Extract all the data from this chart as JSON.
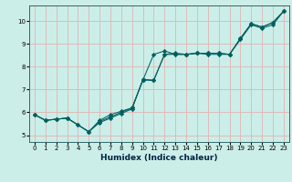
{
  "xlabel": "Humidex (Indice chaleur)",
  "bg_color": "#cceee8",
  "grid_color": "#ddbbbb",
  "line_color": "#006060",
  "xlim": [
    -0.5,
    23.5
  ],
  "ylim": [
    4.7,
    10.7
  ],
  "xticks": [
    0,
    1,
    2,
    3,
    4,
    5,
    6,
    7,
    8,
    9,
    10,
    11,
    12,
    13,
    14,
    15,
    16,
    17,
    18,
    19,
    20,
    21,
    22,
    23
  ],
  "yticks": [
    5,
    6,
    7,
    8,
    9,
    10
  ],
  "line1_x": [
    0,
    1,
    2,
    3,
    4,
    5,
    6,
    7,
    8,
    9,
    10,
    11,
    12,
    13,
    14,
    15,
    16,
    17,
    18,
    19,
    20,
    21,
    22,
    23
  ],
  "line1_y": [
    5.9,
    5.65,
    5.7,
    5.75,
    5.45,
    5.15,
    5.55,
    5.75,
    5.95,
    6.15,
    7.45,
    7.42,
    8.55,
    8.6,
    8.55,
    8.6,
    8.55,
    8.55,
    8.55,
    9.25,
    9.9,
    9.75,
    9.95,
    10.45
  ],
  "line2_x": [
    0,
    1,
    2,
    3,
    5,
    6,
    7,
    8,
    9,
    10,
    11,
    12,
    14,
    15,
    16,
    17,
    18,
    19,
    20,
    21,
    22,
    23
  ],
  "line2_y": [
    5.9,
    5.65,
    5.7,
    5.75,
    5.15,
    5.65,
    5.9,
    6.05,
    6.2,
    7.42,
    7.4,
    8.55,
    8.55,
    8.6,
    8.6,
    8.6,
    8.55,
    9.2,
    9.85,
    9.7,
    9.85,
    10.45
  ],
  "line3_x": [
    0,
    1,
    2,
    3,
    4,
    5,
    6,
    7,
    8,
    9,
    10,
    11,
    12,
    13,
    14,
    15,
    16,
    17,
    18,
    19,
    20,
    21,
    22,
    23
  ],
  "line3_y": [
    5.9,
    5.65,
    5.7,
    5.75,
    5.45,
    5.15,
    5.6,
    5.8,
    6.0,
    6.2,
    7.42,
    8.55,
    8.7,
    8.55,
    8.55,
    8.6,
    8.6,
    8.6,
    8.55,
    9.25,
    9.9,
    9.75,
    9.95,
    10.45
  ]
}
